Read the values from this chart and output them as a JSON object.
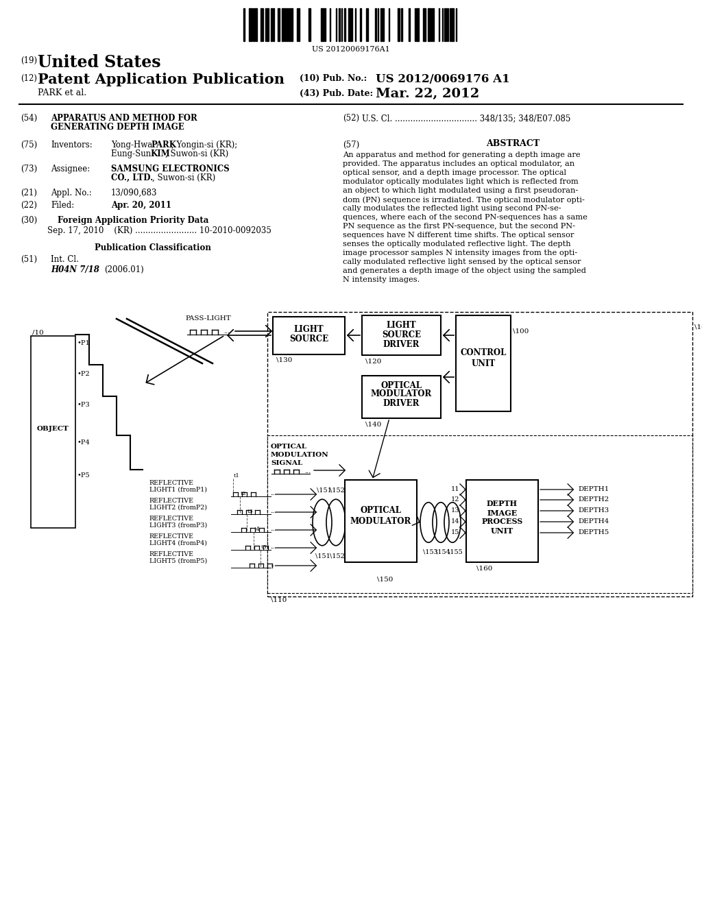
{
  "background_color": "#ffffff",
  "barcode_text": "US 20120069176A1",
  "title_19": "(19)",
  "title_us": "United States",
  "title_12": "(12)",
  "title_pub": "Patent Application Publication",
  "title_10_label": "(10) Pub. No.:",
  "title_pubno": "US 2012/0069176 A1",
  "title_park": "PARK et al.",
  "title_43_label": "(43) Pub. Date:",
  "title_date": "Mar. 22, 2012",
  "field_54_label": "(54)",
  "field_54_title1": "APPARATUS AND METHOD FOR",
  "field_54_title2": "GENERATING DEPTH IMAGE",
  "field_52_label": "(52)",
  "field_52_text": "U.S. Cl. ................................ 348/135; 348/E07.085",
  "field_75_label": "(75)",
  "field_75_key": "Inventors:",
  "field_73_label": "(73)",
  "field_73_key": "Assignee:",
  "field_21_label": "(21)",
  "field_21_key": "Appl. No.:",
  "field_21_val": "13/090,683",
  "field_22_label": "(22)",
  "field_22_key": "Filed:",
  "field_22_val": "Apr. 20, 2011",
  "field_30_label": "(30)",
  "field_30_title": "Foreign Application Priority Data",
  "field_30_data": "Sep. 17, 2010    (KR) ........................ 10-2010-0092035",
  "field_pub_class": "Publication Classification",
  "field_51_label": "(51)",
  "field_51_key": "Int. Cl.",
  "field_51_val": "H04N 7/18",
  "field_51_year": "(2006.01)",
  "field_57_label": "(57)",
  "field_57_title": "ABSTRACT",
  "abstract_lines": [
    "An apparatus and method for generating a depth image are",
    "provided. The apparatus includes an optical modulator, an",
    "optical sensor, and a depth image processor. The optical",
    "modulator optically modulates light which is reflected from",
    "an object to which light modulated using a first pseudoran-",
    "dom (PN) sequence is irradiated. The optical modulator opti-",
    "cally modulates the reflected light using second PN-se-",
    "quences, where each of the second PN-sequences has a same",
    "PN sequence as the first PN-sequence, but the second PN-",
    "sequences have N different time shifts. The optical sensor",
    "senses the optically modulated reflective light. The depth",
    "image processor samples N intensity images from the opti-",
    "cally modulated reflective light sensed by the optical sensor",
    "and generates a depth image of the object using the sampled",
    "N intensity images."
  ]
}
